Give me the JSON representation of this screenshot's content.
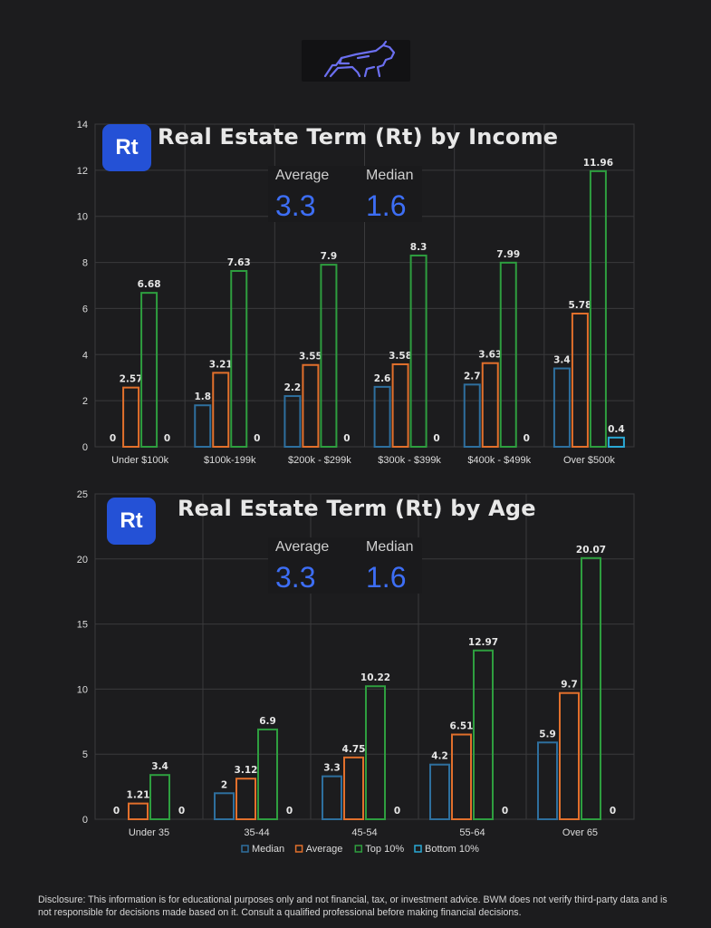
{
  "logo": {
    "icon": "bull-icon",
    "color": "#6b6ff0"
  },
  "legend": [
    "Median",
    "Average",
    "Top 10%",
    "Bottom 10%"
  ],
  "colors": {
    "Median": "#2e6f9e",
    "Average": "#e2702c",
    "Top 10%": "#2e9e3f",
    "Bottom 10%": "#2aa9d6",
    "badge": "#2451d6",
    "stat": "#3d6ef5",
    "grid": "#3a3a3c"
  },
  "chart_data": [
    {
      "type": "bar",
      "title": "Real Estate Term (Rt) by Income",
      "badge": "Rt",
      "stats": {
        "average_label": "Average",
        "average_value": "3.3",
        "median_label": "Median",
        "median_value": "1.6"
      },
      "categories": [
        "Under $100k",
        "$100k-199k",
        "$200k - $299k",
        "$300k - $399k",
        "$400k - $499k",
        "Over $500k"
      ],
      "ylim": [
        0,
        14
      ],
      "yticks": [
        0,
        2,
        4,
        6,
        8,
        10,
        12,
        14
      ],
      "grid": true,
      "legend_position": "bottom",
      "series": [
        {
          "name": "Median",
          "values": [
            0,
            1.8,
            2.2,
            2.6,
            2.7,
            3.4
          ]
        },
        {
          "name": "Average",
          "values": [
            2.57,
            3.21,
            3.55,
            3.58,
            3.63,
            5.78
          ]
        },
        {
          "name": "Top 10%",
          "values": [
            6.68,
            7.63,
            7.9,
            8.3,
            7.99,
            11.96
          ]
        },
        {
          "name": "Bottom 10%",
          "values": [
            0,
            0,
            0,
            0,
            0,
            0.4
          ]
        }
      ]
    },
    {
      "type": "bar",
      "title": "Real Estate Term (Rt) by Age",
      "badge": "Rt",
      "stats": {
        "average_label": "Average",
        "average_value": "3.3",
        "median_label": "Median",
        "median_value": "1.6"
      },
      "categories": [
        "Under 35",
        "35-44",
        "45-54",
        "55-64",
        "Over 65"
      ],
      "ylim": [
        0,
        25
      ],
      "yticks": [
        0,
        5,
        10,
        15,
        20,
        25
      ],
      "grid": true,
      "legend_position": "bottom",
      "series": [
        {
          "name": "Median",
          "values": [
            0,
            2,
            3.3,
            4.2,
            5.9
          ]
        },
        {
          "name": "Average",
          "values": [
            1.21,
            3.12,
            4.75,
            6.51,
            9.7
          ]
        },
        {
          "name": "Top 10%",
          "values": [
            3.4,
            6.9,
            10.22,
            12.97,
            20.07
          ]
        },
        {
          "name": "Bottom 10%",
          "values": [
            0,
            0,
            0,
            0,
            0
          ]
        }
      ]
    }
  ],
  "disclosure": {
    "label": "Disclosure:",
    "text": " This information is for educational purposes only and not financial, tax, or investment advice. BWM does not verify third-party data and is not responsible for decisions made based on it. Consult a qualified professional before making financial decisions."
  }
}
